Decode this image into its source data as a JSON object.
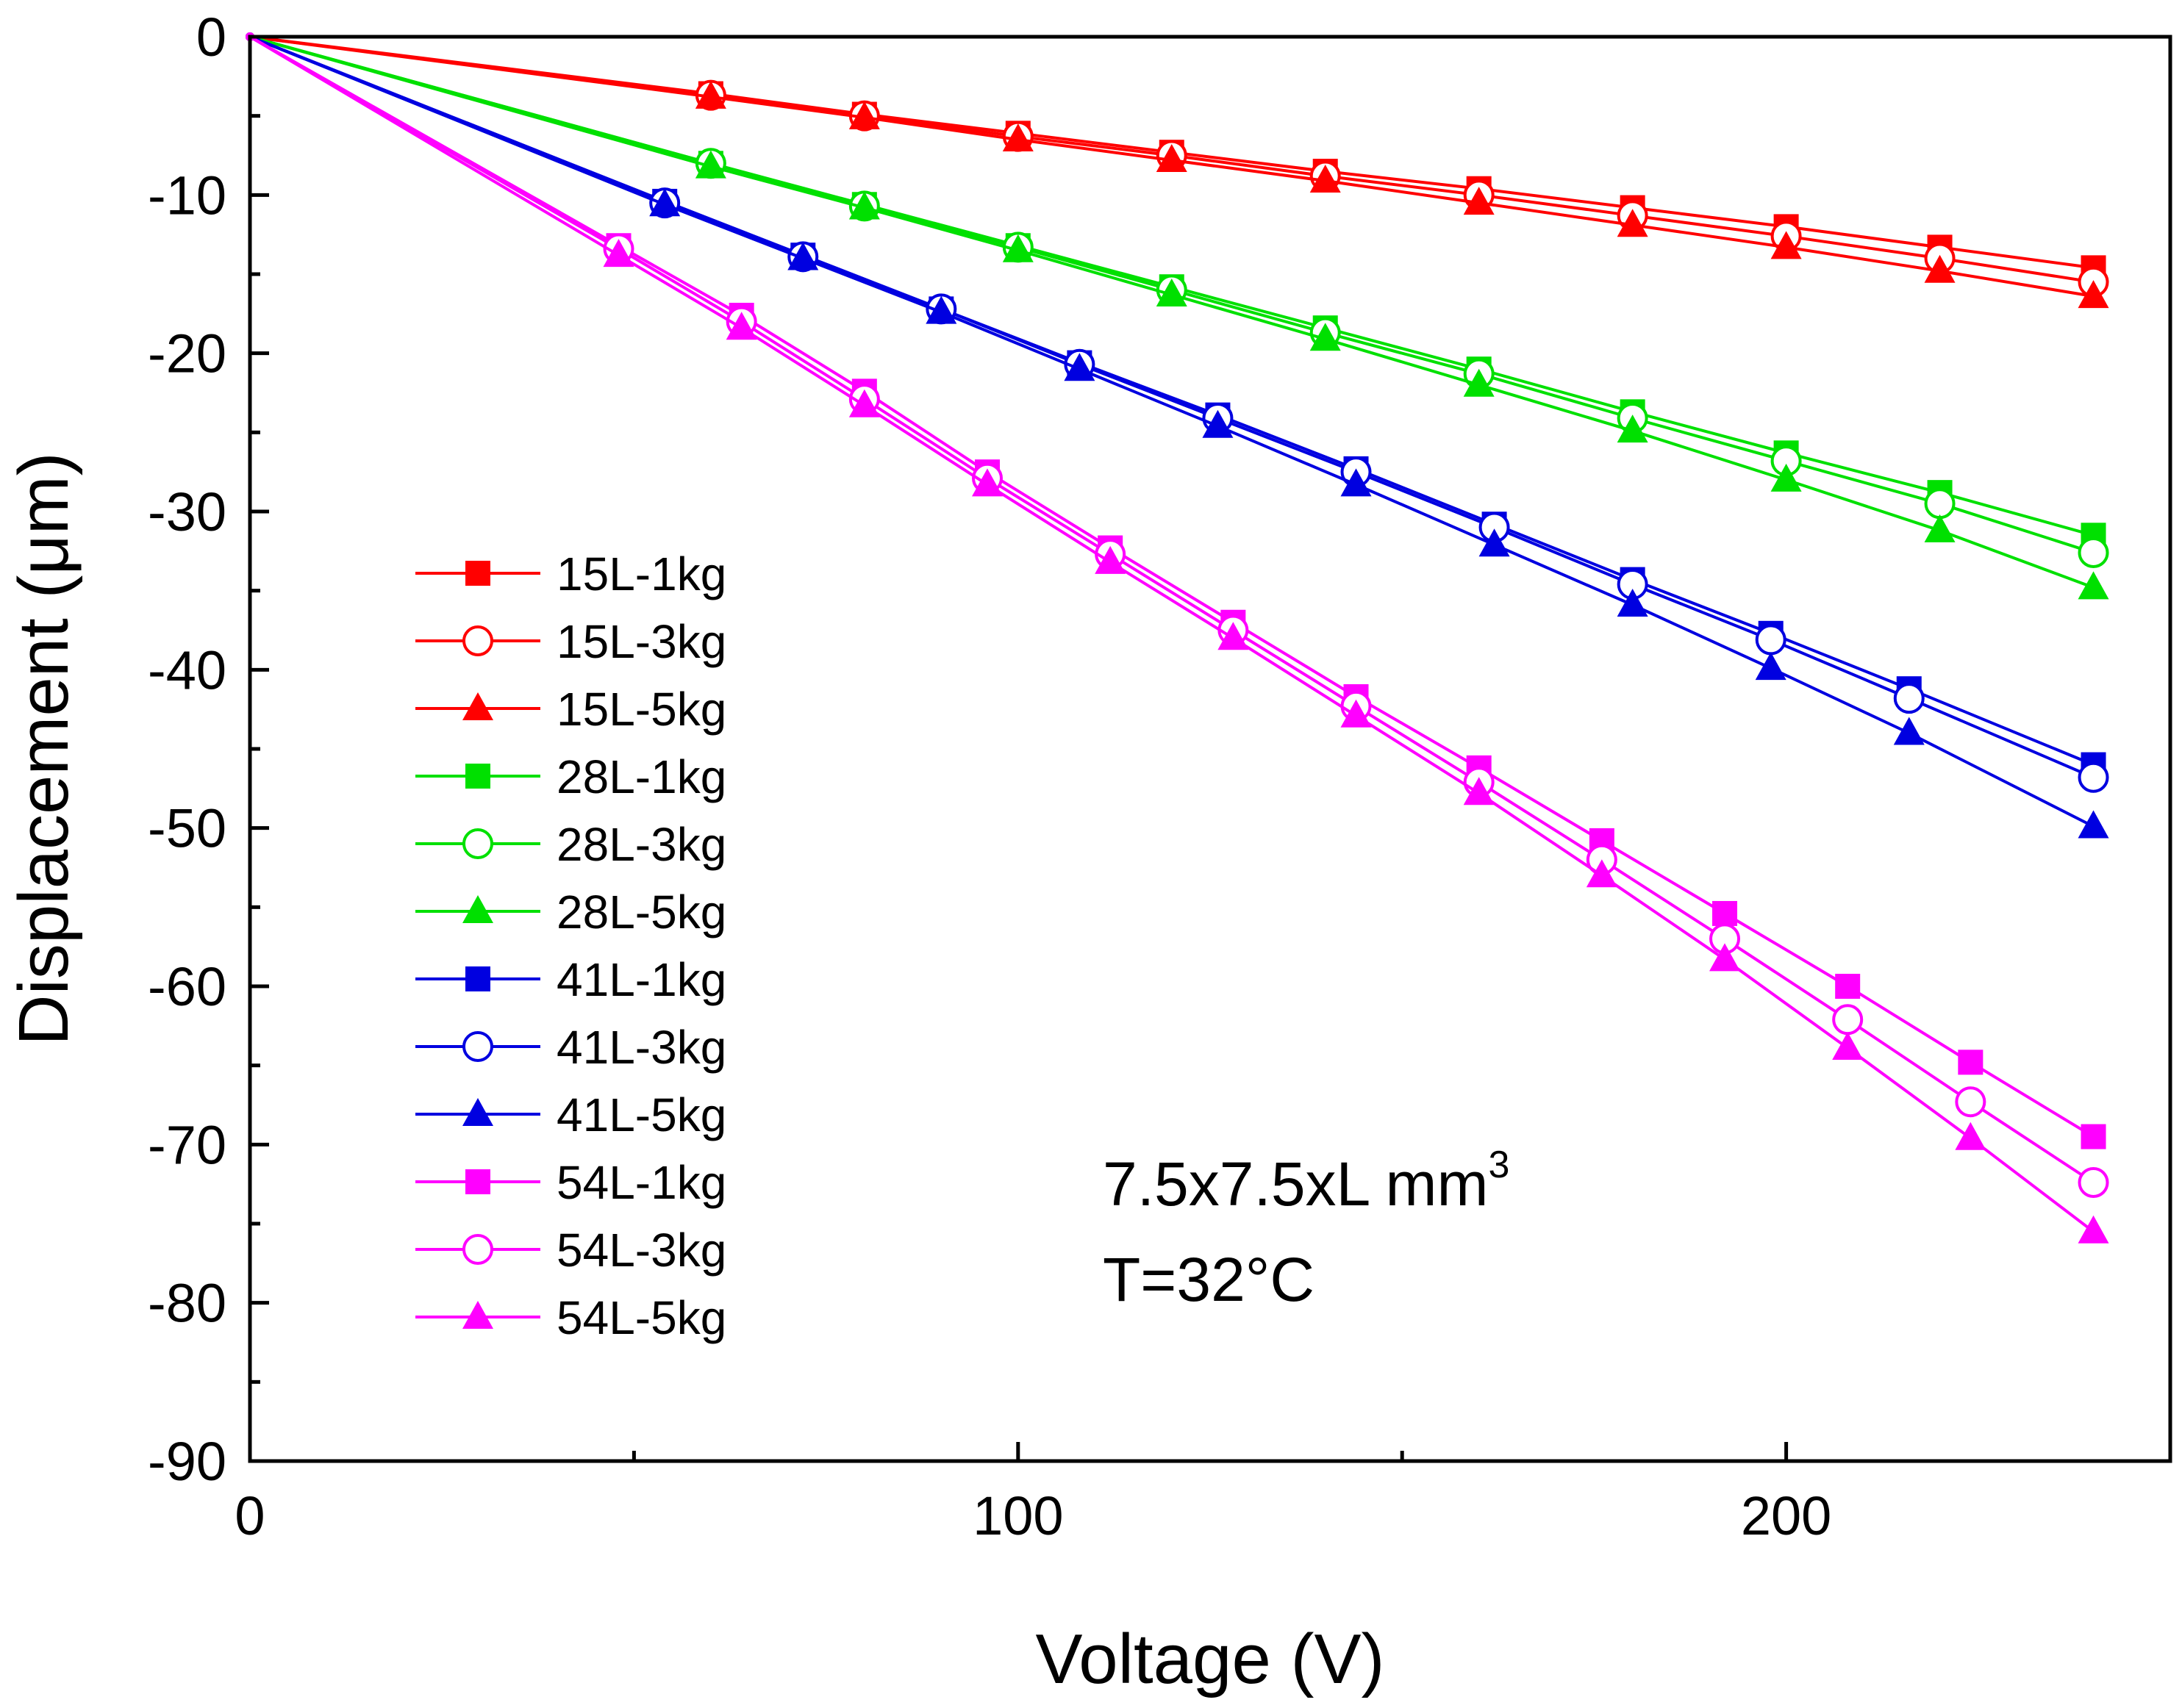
{
  "chart_data": {
    "type": "line",
    "title": "",
    "xlabel": "Voltage (V)",
    "ylabel": "Displacement (μm)",
    "xlim": [
      0,
      250
    ],
    "ylim": [
      -90,
      0
    ],
    "x_ticks": [
      0,
      100,
      200
    ],
    "x_tick_labels": [
      "0",
      "100",
      "200"
    ],
    "x_minor_ticks": [
      50,
      150,
      250
    ],
    "y_ticks": [
      0,
      -10,
      -20,
      -30,
      -40,
      -50,
      -60,
      -70,
      -80,
      -90
    ],
    "y_tick_labels": [
      "0",
      "-10",
      "-20",
      "-30",
      "-40",
      "-50",
      "-60",
      "-70",
      "-80",
      "-90"
    ],
    "y_minor_ticks": [
      -5,
      -15,
      -25,
      -35,
      -45,
      -55,
      -65,
      -75,
      -85
    ],
    "grid": false,
    "legend_position": "center-left",
    "annotations": {
      "dimension_main": "7.5x7.5xL mm",
      "dimension_sup": "3",
      "temperature": "T=32°C"
    },
    "colors": {
      "15L": "#ff0000",
      "28L": "#00e000",
      "41L": "#0000e0",
      "54L": "#ff00ff"
    },
    "series": [
      {
        "name": "15L-1kg",
        "color": "#ff0000",
        "marker": "square",
        "x": [
          0,
          60,
          80,
          100,
          120,
          140,
          160,
          180,
          200,
          220,
          240
        ],
        "y": [
          0,
          -3.6,
          -4.9,
          -6.1,
          -7.3,
          -8.5,
          -9.6,
          -10.8,
          -12.0,
          -13.3,
          -14.6
        ]
      },
      {
        "name": "15L-3kg",
        "color": "#ff0000",
        "marker": "circle",
        "x": [
          0,
          60,
          80,
          100,
          120,
          140,
          160,
          180,
          200,
          220,
          240
        ],
        "y": [
          0,
          -3.7,
          -5.0,
          -6.3,
          -7.5,
          -8.8,
          -10.0,
          -11.3,
          -12.6,
          -14.0,
          -15.5
        ]
      },
      {
        "name": "15L-5kg",
        "color": "#ff0000",
        "marker": "triangle",
        "x": [
          0,
          60,
          80,
          100,
          120,
          140,
          160,
          180,
          200,
          220,
          240
        ],
        "y": [
          0,
          -3.8,
          -5.1,
          -6.5,
          -7.8,
          -9.1,
          -10.5,
          -11.9,
          -13.3,
          -14.8,
          -16.4
        ]
      },
      {
        "name": "28L-1kg",
        "color": "#00e000",
        "marker": "square",
        "x": [
          0,
          60,
          80,
          100,
          120,
          140,
          160,
          180,
          200,
          220,
          240
        ],
        "y": [
          0,
          -8.0,
          -10.6,
          -13.2,
          -15.8,
          -18.4,
          -21.0,
          -23.7,
          -26.3,
          -28.8,
          -31.5
        ]
      },
      {
        "name": "28L-3kg",
        "color": "#00e000",
        "marker": "circle",
        "x": [
          0,
          60,
          80,
          100,
          120,
          140,
          160,
          180,
          200,
          220,
          240
        ],
        "y": [
          0,
          -8.0,
          -10.7,
          -13.3,
          -16.0,
          -18.7,
          -21.3,
          -24.1,
          -26.8,
          -29.5,
          -32.6
        ]
      },
      {
        "name": "28L-5kg",
        "color": "#00e000",
        "marker": "triangle",
        "x": [
          0,
          60,
          80,
          100,
          120,
          140,
          160,
          180,
          200,
          220,
          240
        ],
        "y": [
          0,
          -8.2,
          -10.8,
          -13.5,
          -16.3,
          -19.1,
          -22.0,
          -24.9,
          -28.0,
          -31.2,
          -34.8
        ]
      },
      {
        "name": "41L-1kg",
        "color": "#0000e0",
        "marker": "square",
        "x": [
          0,
          54,
          72,
          90,
          108,
          126,
          144,
          162,
          180,
          198,
          216,
          240
        ],
        "y": [
          0,
          -10.4,
          -13.8,
          -17.2,
          -20.6,
          -23.9,
          -27.3,
          -30.8,
          -34.3,
          -37.7,
          -41.2,
          -46.0
        ]
      },
      {
        "name": "41L-3kg",
        "color": "#0000e0",
        "marker": "circle",
        "x": [
          0,
          54,
          72,
          90,
          108,
          126,
          144,
          162,
          180,
          198,
          216,
          240
        ],
        "y": [
          0,
          -10.5,
          -13.9,
          -17.2,
          -20.7,
          -24.1,
          -27.5,
          -31.0,
          -34.6,
          -38.1,
          -41.8,
          -46.8
        ]
      },
      {
        "name": "41L-5kg",
        "color": "#0000e0",
        "marker": "triangle",
        "x": [
          0,
          54,
          72,
          90,
          108,
          126,
          144,
          162,
          180,
          198,
          216,
          240
        ],
        "y": [
          0,
          -10.6,
          -14.0,
          -17.4,
          -21.0,
          -24.6,
          -28.3,
          -32.1,
          -35.9,
          -39.9,
          -44.0,
          -49.9
        ]
      },
      {
        "name": "54L-1kg",
        "color": "#ff00ff",
        "marker": "square",
        "x": [
          0,
          48,
          64,
          80,
          96,
          112,
          128,
          144,
          160,
          176,
          192,
          208,
          224,
          240
        ],
        "y": [
          0,
          -13.2,
          -17.6,
          -22.4,
          -27.5,
          -32.3,
          -37.0,
          -41.7,
          -46.2,
          -50.8,
          -55.4,
          -60.0,
          -64.8,
          -69.5
        ]
      },
      {
        "name": "54L-3kg",
        "color": "#ff00ff",
        "marker": "circle",
        "x": [
          0,
          48,
          64,
          80,
          96,
          112,
          128,
          144,
          160,
          176,
          192,
          208,
          224,
          240
        ],
        "y": [
          0,
          -13.4,
          -18.0,
          -22.9,
          -27.9,
          -32.7,
          -37.5,
          -42.3,
          -47.1,
          -52.0,
          -57.0,
          -62.1,
          -67.3,
          -72.4
        ]
      },
      {
        "name": "54L-5kg",
        "color": "#ff00ff",
        "marker": "triangle",
        "x": [
          0,
          48,
          64,
          80,
          96,
          112,
          128,
          144,
          160,
          176,
          192,
          208,
          224,
          240
        ],
        "y": [
          0,
          -13.8,
          -18.4,
          -23.3,
          -28.3,
          -33.2,
          -38.0,
          -42.9,
          -47.8,
          -53.0,
          -58.3,
          -63.9,
          -69.6,
          -75.5
        ]
      }
    ]
  }
}
